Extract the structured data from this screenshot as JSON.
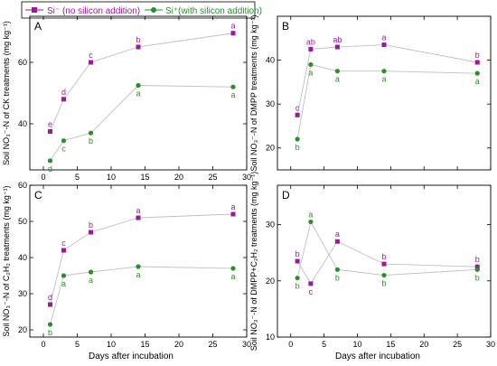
{
  "legend": {
    "items": [
      {
        "label": "Si⁻ (no silicon addition)",
        "color": "#9b1a9b",
        "marker": "square"
      },
      {
        "label": "Si⁺(with silicon addition)",
        "color": "#2e8b2e",
        "marker": "circle"
      }
    ]
  },
  "colors": {
    "si_minus": "#9b1a9b",
    "si_plus": "#2e8b2e",
    "line": "#c0c0c0",
    "axis": "#000000"
  },
  "xlabel": "Days after incubation",
  "chart_data": [
    {
      "type": "line",
      "panel": "A",
      "ylabel": "Soil NO₃⁻-N of CK treatments (mg kg⁻¹)",
      "x": [
        1,
        3,
        7,
        14,
        28
      ],
      "xlim": [
        -2,
        30
      ],
      "ylim": [
        25,
        75
      ],
      "yticks": [
        40,
        60
      ],
      "xticks": [
        0,
        5,
        10,
        15,
        20,
        25,
        30
      ],
      "show_xticklabels": true,
      "series": [
        {
          "name": "Si⁻ (no silicon addition)",
          "values": [
            37.5,
            48.0,
            60.0,
            65.0,
            69.5
          ],
          "letters": [
            "e",
            "d",
            "c",
            "b",
            "a"
          ]
        },
        {
          "name": "Si⁺(with silicon addition)",
          "values": [
            28.0,
            34.5,
            37.0,
            52.5,
            52.0
          ],
          "letters": [
            "d",
            "c",
            "b",
            "a",
            "a"
          ]
        }
      ]
    },
    {
      "type": "line",
      "panel": "B",
      "ylabel": "Soil NO₃⁻-N of DMPP treatments (mg kg⁻¹)",
      "x": [
        1,
        3,
        7,
        14,
        28
      ],
      "xlim": [
        -2,
        30
      ],
      "ylim": [
        15,
        50
      ],
      "yticks": [
        20,
        30,
        40
      ],
      "xticks": [
        0,
        5,
        10,
        15,
        20,
        25,
        30
      ],
      "show_xticklabels": false,
      "series": [
        {
          "name": "Si⁻ (no silicon addition)",
          "values": [
            27.5,
            42.5,
            43.0,
            43.5,
            39.5
          ],
          "letters": [
            "c",
            "ab",
            "ab",
            "a",
            "b"
          ]
        },
        {
          "name": "Si⁺(with silicon addition)",
          "values": [
            22.0,
            39.0,
            37.5,
            37.5,
            37.0
          ],
          "letters": [
            "b",
            "a",
            "a",
            "a",
            "a"
          ]
        }
      ]
    },
    {
      "type": "line",
      "panel": "C",
      "ylabel": "Soil NO₃⁻-N of C₂H₂ treatments (mg kg⁻¹)",
      "x": [
        1,
        3,
        7,
        14,
        28
      ],
      "xlim": [
        -2,
        30
      ],
      "ylim": [
        18,
        60
      ],
      "yticks": [
        20,
        30,
        40,
        50,
        60
      ],
      "xticks": [
        0,
        5,
        10,
        15,
        20,
        25,
        30
      ],
      "show_xticklabels": true,
      "series": [
        {
          "name": "Si⁻ (no silicon addition)",
          "values": [
            27.0,
            42.0,
            47.0,
            51.0,
            52.0
          ],
          "letters": [
            "d",
            "c",
            "b",
            "a",
            "a"
          ]
        },
        {
          "name": "Si⁺(with silicon addition)",
          "values": [
            21.5,
            35.0,
            36.0,
            37.5,
            37.0
          ],
          "letters": [
            "b",
            "a",
            "a",
            "a",
            "a"
          ]
        }
      ]
    },
    {
      "type": "line",
      "panel": "D",
      "ylabel": "Soil NO₃⁻-N of DMPP+C₂H₂ treatments (mg kg⁻¹)",
      "x": [
        1,
        3,
        7,
        14,
        28
      ],
      "xlim": [
        -2,
        30
      ],
      "ylim": [
        10,
        37
      ],
      "yticks": [
        10,
        20,
        30
      ],
      "xticks": [
        0,
        5,
        10,
        15,
        20,
        25,
        30
      ],
      "show_xticklabels": true,
      "series": [
        {
          "name": "Si⁻ (no silicon addition)",
          "values": [
            23.5,
            19.5,
            27.0,
            23.0,
            22.5
          ],
          "letters": [
            "b",
            "c",
            "a",
            "b",
            "b"
          ]
        },
        {
          "name": "Si⁺(with silicon addition)",
          "values": [
            20.5,
            30.5,
            22.0,
            21.0,
            22.0
          ],
          "letters": [
            "b",
            "a",
            "b",
            "b",
            "b"
          ]
        }
      ]
    }
  ]
}
